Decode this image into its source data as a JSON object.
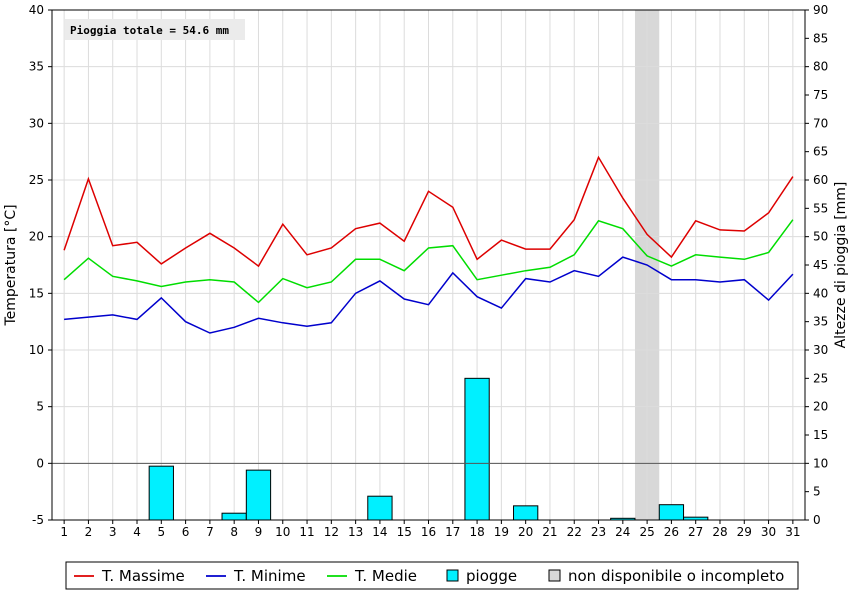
{
  "chart_data": {
    "type": "line",
    "annotation": "Pioggia totale = 54.6 mm",
    "x": [
      1,
      2,
      3,
      4,
      5,
      6,
      7,
      8,
      9,
      10,
      11,
      12,
      13,
      14,
      15,
      16,
      17,
      18,
      19,
      20,
      21,
      22,
      23,
      24,
      25,
      26,
      27,
      28,
      29,
      30,
      31
    ],
    "y_left": {
      "label": "Temperatura [°C]",
      "ylim": [
        -5,
        40
      ],
      "ticks": [
        -5,
        0,
        5,
        10,
        15,
        20,
        25,
        30,
        35,
        40
      ]
    },
    "y_right": {
      "label": "Altezze di pioggia [mm]",
      "ylim": [
        0,
        90
      ],
      "ticks": [
        0,
        5,
        10,
        15,
        20,
        25,
        30,
        35,
        40,
        45,
        50,
        55,
        60,
        65,
        70,
        75,
        80,
        85,
        90
      ]
    },
    "series": [
      {
        "name": "T. Massime",
        "color": "#dd0000",
        "type": "line",
        "values": [
          18.8,
          25.1,
          19.2,
          19.5,
          17.6,
          19.0,
          20.3,
          19.0,
          17.4,
          21.1,
          18.4,
          19.0,
          20.7,
          21.2,
          19.6,
          24.0,
          22.6,
          18.0,
          19.7,
          18.9,
          18.9,
          21.5,
          27.0,
          23.4,
          20.2,
          18.2,
          21.4,
          20.6,
          20.5,
          22.1,
          25.3
        ]
      },
      {
        "name": "T. Minime",
        "color": "#0000cc",
        "type": "line",
        "values": [
          12.7,
          12.9,
          13.1,
          12.7,
          14.6,
          12.5,
          11.5,
          12.0,
          12.8,
          12.4,
          12.1,
          12.4,
          15.0,
          16.1,
          14.5,
          14.0,
          16.8,
          14.7,
          13.7,
          16.3,
          16.0,
          17.0,
          16.5,
          18.2,
          17.5,
          16.2,
          16.2,
          16.0,
          16.2,
          14.4,
          16.7
        ]
      },
      {
        "name": "T. Medie",
        "color": "#00dd00",
        "type": "line",
        "values": [
          16.2,
          18.1,
          16.5,
          16.1,
          15.6,
          16.0,
          16.2,
          16.0,
          14.2,
          16.3,
          15.5,
          16.0,
          18.0,
          18.0,
          17.0,
          19.0,
          19.2,
          16.2,
          16.6,
          17.0,
          17.3,
          18.4,
          21.4,
          20.7,
          18.3,
          17.4,
          18.4,
          18.2,
          18.0,
          18.6,
          21.5
        ]
      },
      {
        "name": "piogge",
        "color": "#00f0ff",
        "type": "bar",
        "axis": "right",
        "values": [
          0,
          0,
          0,
          0,
          9.5,
          0,
          0,
          1.2,
          8.8,
          0,
          0,
          0,
          0,
          4.2,
          0,
          0,
          0,
          25.0,
          0,
          2.5,
          0,
          0,
          0,
          0.3,
          0,
          2.7,
          0.5,
          0,
          0,
          0,
          0
        ]
      }
    ],
    "unavailable_days": [
      25
    ],
    "grid": true,
    "legend": {
      "position": "bottom",
      "items": [
        {
          "label": "T. Massime",
          "color": "#dd0000",
          "kind": "line"
        },
        {
          "label": "T. Minime",
          "color": "#0000cc",
          "kind": "line"
        },
        {
          "label": "T. Medie",
          "color": "#00dd00",
          "kind": "line"
        },
        {
          "label": "piogge",
          "color": "#00f0ff",
          "kind": "box"
        },
        {
          "label": "non disponibile o incompleto",
          "color": "#d8d8d8",
          "kind": "box"
        }
      ]
    }
  }
}
